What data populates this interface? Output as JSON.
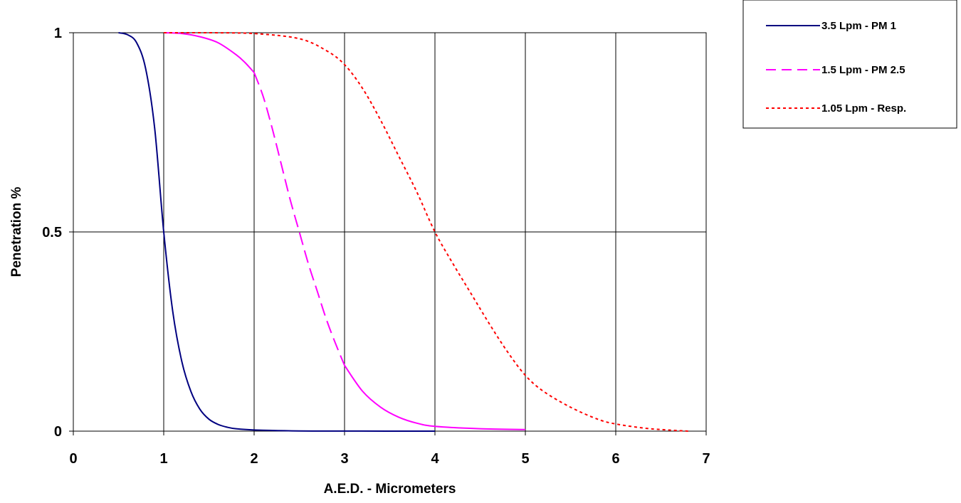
{
  "chart_data": {
    "type": "line",
    "title": "",
    "xlabel": "A.E.D. - Micrometers",
    "ylabel": "Penetration %",
    "xlim": [
      0,
      7
    ],
    "ylim": [
      0,
      1
    ],
    "x_ticks": [
      "0",
      "1",
      "2",
      "3",
      "4",
      "5",
      "6",
      "7"
    ],
    "y_ticks": [
      "0",
      "0.5",
      "1"
    ],
    "grid": "vertical at each x tick, horizontal at 0.5 and 1",
    "legend_position": "top-right, outside plot",
    "series": [
      {
        "name": "3.5 Lpm - PM 1",
        "color": "#000080",
        "dash": "solid",
        "x": [
          0.5,
          0.6,
          0.7,
          0.8,
          0.9,
          1.0,
          1.1,
          1.2,
          1.3,
          1.4,
          1.5,
          1.6,
          1.7,
          1.8,
          2.0,
          2.5,
          3.0,
          4.0
        ],
        "y": [
          1.0,
          0.995,
          0.975,
          0.91,
          0.76,
          0.5,
          0.3,
          0.175,
          0.1,
          0.055,
          0.03,
          0.017,
          0.01,
          0.006,
          0.003,
          0.0005,
          0.0002,
          0.0
        ]
      },
      {
        "name": "1.5 Lpm - PM 2.5",
        "color": "#ff00ff",
        "dash": "long-dash then solid",
        "x": [
          1.0,
          1.2,
          1.4,
          1.6,
          1.8,
          1.9,
          2.0,
          2.1,
          2.2,
          2.3,
          2.4,
          2.5,
          2.6,
          2.7,
          2.8,
          2.9,
          3.0,
          3.2,
          3.4,
          3.6,
          3.8,
          4.0,
          4.5,
          5.0
        ],
        "y": [
          1.0,
          0.998,
          0.99,
          0.975,
          0.945,
          0.925,
          0.9,
          0.84,
          0.76,
          0.67,
          0.58,
          0.5,
          0.42,
          0.35,
          0.28,
          0.22,
          0.165,
          0.1,
          0.06,
          0.035,
          0.02,
          0.012,
          0.006,
          0.004
        ]
      },
      {
        "name": "1.05 Lpm - Resp.",
        "color": "#ff0000",
        "dash": "dotted",
        "x": [
          1.0,
          1.5,
          2.0,
          2.5,
          2.8,
          3.0,
          3.2,
          3.4,
          3.6,
          3.8,
          4.0,
          4.2,
          4.4,
          4.6,
          4.8,
          5.0,
          5.2,
          5.5,
          5.8,
          6.0,
          6.3,
          6.5,
          6.8
        ],
        "y": [
          1.0,
          1.0,
          0.998,
          0.985,
          0.955,
          0.92,
          0.86,
          0.78,
          0.69,
          0.6,
          0.5,
          0.42,
          0.345,
          0.27,
          0.2,
          0.14,
          0.1,
          0.06,
          0.03,
          0.018,
          0.008,
          0.004,
          0.0
        ]
      }
    ]
  }
}
